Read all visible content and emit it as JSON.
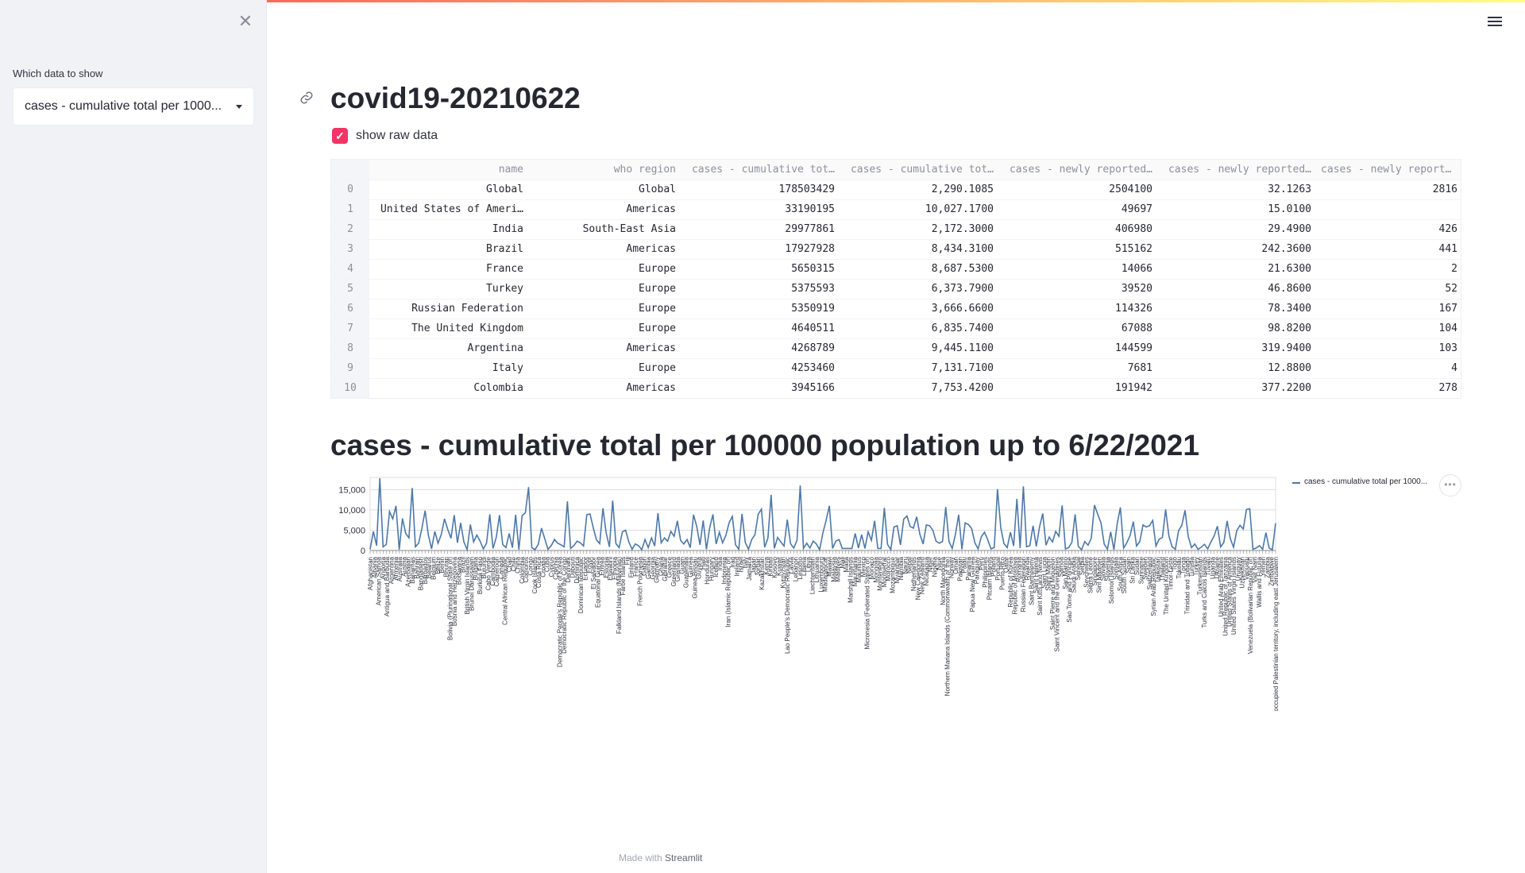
{
  "sidebar": {
    "close_glyph": "✕",
    "select_label": "Which data to show",
    "select_value": "cases - cumulative total per 1000..."
  },
  "main": {
    "title": "covid19-20210622",
    "checkbox_label": "show raw data",
    "checkbox_checked": true
  },
  "table": {
    "columns": [
      "name",
      "who region",
      "cases - cumulative tot…",
      "cases - cumulative tot…",
      "cases - newly reported…",
      "cases - newly reported…",
      "cases - newly reported…"
    ],
    "rows": [
      {
        "index": "0",
        "cells": [
          "Global",
          "Global",
          "178503429",
          "2,290.1085",
          "2504100",
          "32.1263",
          "2816"
        ]
      },
      {
        "index": "1",
        "cells": [
          "United States of Ameri…",
          "Americas",
          "33190195",
          "10,027.1700",
          "49697",
          "15.0100",
          ""
        ]
      },
      {
        "index": "2",
        "cells": [
          "India",
          "South-East Asia",
          "29977861",
          "2,172.3000",
          "406980",
          "29.4900",
          "426"
        ]
      },
      {
        "index": "3",
        "cells": [
          "Brazil",
          "Americas",
          "17927928",
          "8,434.3100",
          "515162",
          "242.3600",
          "441"
        ]
      },
      {
        "index": "4",
        "cells": [
          "France",
          "Europe",
          "5650315",
          "8,687.5300",
          "14066",
          "21.6300",
          "2"
        ]
      },
      {
        "index": "5",
        "cells": [
          "Turkey",
          "Europe",
          "5375593",
          "6,373.7900",
          "39520",
          "46.8600",
          "52"
        ]
      },
      {
        "index": "6",
        "cells": [
          "Russian Federation",
          "Europe",
          "5350919",
          "3,666.6600",
          "114326",
          "78.3400",
          "167"
        ]
      },
      {
        "index": "7",
        "cells": [
          "The United Kingdom",
          "Europe",
          "4640511",
          "6,835.7400",
          "67088",
          "98.8200",
          "104"
        ]
      },
      {
        "index": "8",
        "cells": [
          "Argentina",
          "Americas",
          "4268789",
          "9,445.1100",
          "144599",
          "319.9400",
          "103"
        ]
      },
      {
        "index": "9",
        "cells": [
          "Italy",
          "Europe",
          "4253460",
          "7,131.7100",
          "7681",
          "12.8800",
          "4"
        ]
      },
      {
        "index": "10",
        "cells": [
          "Colombia",
          "Americas",
          "3945166",
          "7,753.4200",
          "191942",
          "377.2200",
          "278"
        ]
      }
    ]
  },
  "chart_title": "cases - cumulative total per 100000 population up to 6/22/2021",
  "chart_data": {
    "type": "line",
    "ylim": [
      0,
      18000
    ],
    "y_ticks": [
      "0",
      "5,000",
      "10,000",
      "15,000"
    ],
    "x_labels_visible": [
      "Afghanistan",
      "Albania",
      "American Samoa",
      "Andorra",
      "Antigua and Barbuda",
      "Argentina",
      "Armenia",
      "Australia",
      "Austria",
      "Azerbaijan",
      "Bahamas",
      "Bahrain",
      "Bangladesh",
      "Barbados",
      "Belarus",
      "Belgium",
      "Belize",
      "Benin",
      "Bhutan",
      "Bolivia (Plurinational State of)",
      "Bosnia and Herzegovina",
      "Botswana",
      "Brazil",
      "British Virgin Islands",
      "Brunei Darussalam",
      "Bulgaria",
      "Burkina Faso",
      "Burundi",
      "Cabo Verde",
      "Cambodia",
      "Cameroon",
      "Canada",
      "Central African Republic",
      "Chad",
      "Chile",
      "China",
      "Colombia",
      "Comoros",
      "Congo",
      "Cook Islands",
      "Costa Rica",
      "Croatia",
      "Cuba",
      "Cyprus",
      "Czechia",
      "Democratic People's Republic of Korea",
      "Democratic Republic of the Congo",
      "Denmark",
      "Djibouti",
      "Dominica",
      "Dominican Republic",
      "Ecuador",
      "Egypt",
      "El Salvador",
      "Equatorial Guinea",
      "Eritrea",
      "Estonia",
      "Eswatini",
      "Ethiopia",
      "Falkland Islands (Malvinas)",
      "Faroe Islands",
      "Fiji",
      "Finland",
      "France",
      "French Polynesia",
      "Gabon",
      "Gambia",
      "Georgia",
      "Germany",
      "Ghana",
      "Gibraltar",
      "Greece",
      "Greenland",
      "Grenada",
      "Guam",
      "Guatemala",
      "Guinea",
      "Guinea-Bissau",
      "Guyana",
      "Haiti",
      "Honduras",
      "Hungary",
      "Iceland",
      "India",
      "Indonesia",
      "Iran (Islamic Republic of)",
      "Iraq",
      "Ireland",
      "Israel",
      "Italy",
      "Jamaica",
      "Japan",
      "Jordan",
      "Kazakhstan",
      "Kenya",
      "Kiribati",
      "Kosovo",
      "Kuwait",
      "Kyrgyzstan",
      "Lao People's Democratic Republic",
      "Latvia",
      "Lebanon",
      "Lesotho",
      "Liberia",
      "Libya",
      "Liechtenstein",
      "Lithuania",
      "Luxembourg",
      "Madagascar",
      "Malawi",
      "Malaysia",
      "Maldives",
      "Mali",
      "Malta",
      "Marshall Islands",
      "Mauritania",
      "Mauritius",
      "Mexico",
      "Micronesia (Federated States of)",
      "Monaco",
      "Mongolia",
      "Montenegro",
      "Montserrat",
      "Morocco",
      "Mozambique",
      "Myanmar",
      "Namibia",
      "Nauru",
      "Nepal",
      "Netherlands",
      "New Caledonia",
      "New Zealand",
      "Nicaragua",
      "Niger",
      "Nigeria",
      "Niue",
      "North Macedonia",
      "Northern Mariana Islands (Commonwealth of the)",
      "Norway",
      "Oman",
      "Pakistan",
      "Palau",
      "Panama",
      "Papua New Guinea",
      "Paraguay",
      "Peru",
      "Philippines",
      "Pitcairn Islands",
      "Poland",
      "Portugal",
      "Puerto Rico",
      "Qatar",
      "Republic of Korea",
      "Republic of Moldova",
      "Romania",
      "Russian Federation",
      "Rwanda",
      "Saint Barthélemy",
      "Saint Helena",
      "Saint Kitts and Nevis",
      "Saint Lucia",
      "Saint Martin",
      "Saint Pierre and Miquelon",
      "Saint Vincent and the Grenadines",
      "Samoa",
      "San Marino",
      "Sao Tome and Principe",
      "Saudi Arabia",
      "Senegal",
      "Serbia",
      "Seychelles",
      "Sierra Leone",
      "Singapore",
      "Sint Maarten",
      "Slovakia",
      "Slovenia",
      "Solomon Islands",
      "Somalia",
      "South Africa",
      "South Sudan",
      "Spain",
      "Sri Lanka",
      "Sudan",
      "Suriname",
      "Sweden",
      "Switzerland",
      "Syrian Arab Republic",
      "Tajikistan",
      "Thailand",
      "The United Kingdom",
      "Timor-Leste",
      "Togo",
      "Tokelau",
      "Tonga",
      "Trinidad and Tobago",
      "Tunisia",
      "Turkey",
      "Turkmenistan",
      "Turks and Caicos Islands",
      "Tuvalu",
      "Uganda",
      "Ukraine",
      "United Arab Emirates",
      "United Republic of Tanzania",
      "United States of America",
      "United States Virgin Islands",
      "Uruguay",
      "Uzbekistan",
      "Vanuatu",
      "Venezuela (Bolivarian Republic of)",
      "Viet Nam",
      "Wallis and Futuna",
      "Yemen",
      "Zambia",
      "Zimbabwe",
      "occupied Palestinian territory, including east Jerusalem"
    ],
    "series": [
      {
        "name": "cases - cumulative total per 1000...",
        "color": "#4c78a8",
        "values": [
          300,
          4700,
          1200,
          17800,
          900,
          1500,
          9600,
          7800,
          11000,
          200,
          7900,
          4200,
          3100,
          15400,
          900,
          1800,
          5400,
          9800,
          3800,
          400,
          4700,
          1800,
          3900,
          7800,
          5200,
          3000,
          8700,
          1900,
          6800,
          2100,
          200,
          6400,
          2100,
          3800,
          2300,
          400,
          1800,
          8900,
          500,
          3200,
          8700,
          1500,
          700,
          4200,
          700,
          8800,
          200,
          8600,
          9300,
          15600,
          700,
          200,
          1500,
          5500,
          2900,
          300,
          1200,
          2700,
          1800,
          1400,
          900,
          12100,
          500,
          1200,
          2300,
          1900,
          1100,
          8800,
          9000,
          5600,
          2600,
          1700,
          10400,
          4300,
          900,
          12300,
          1700,
          700,
          4600,
          5000,
          2100,
          300,
          1600,
          1200,
          200,
          2700,
          700,
          3100,
          1100,
          9200,
          1900,
          3100,
          2300,
          4700,
          3500,
          7300,
          2500,
          1600,
          2700,
          700,
          8800,
          5900,
          1400,
          7400,
          300,
          5600,
          8900,
          1600,
          4500,
          1900,
          3700,
          6800,
          8400,
          1400,
          300,
          9000,
          2000,
          300,
          2700,
          3900,
          8900,
          10200,
          800,
          3000,
          13700,
          500,
          3200,
          2100,
          1100,
          7600,
          1700,
          600,
          2500,
          16000,
          500,
          1800,
          600,
          2300,
          1600,
          200,
          4300,
          7400,
          11000,
          500,
          2300,
          2700,
          500,
          500,
          500,
          500,
          4200,
          600,
          3900,
          500,
          4600,
          2500,
          7300,
          500,
          500,
          10500,
          1500,
          200,
          5800,
          6100,
          1400,
          7700,
          8500,
          5900,
          5500,
          8300,
          4000,
          1600,
          6300,
          6100,
          5000,
          2300,
          1800,
          2200,
          10700,
          2200,
          500,
          4000,
          8800,
          300,
          6800,
          6400,
          5400,
          1900,
          400,
          3400,
          4500,
          2600,
          400,
          700,
          15100,
          5700,
          1700,
          700,
          4500,
          1100,
          12700,
          600,
          15800,
          900,
          1200,
          6100,
          1000,
          5800,
          9100,
          1300,
          3300,
          2100,
          4700,
          3500,
          11100,
          400,
          700,
          2000,
          8900,
          1000,
          200,
          2200,
          1300,
          3000,
          11200,
          8900,
          6800,
          1600,
          300,
          4600,
          200,
          6500,
          10600,
          600,
          1900,
          3700,
          7100,
          1100,
          2200,
          6300,
          5800,
          6100,
          7400,
          1100,
          2800,
          3200,
          10100,
          3600,
          900,
          300,
          4900,
          6200,
          9900,
          3400,
          700,
          1600,
          300,
          800,
          1500,
          400,
          2100,
          3600,
          6000,
          900,
          2000,
          7300,
          2900,
          800,
          4900,
          6200,
          5300,
          10100,
          10300,
          300,
          600,
          1200,
          300,
          4400,
          600,
          200,
          6700
        ]
      }
    ]
  },
  "footer": {
    "prefix": "Made with ",
    "brand": "Streamlit"
  }
}
